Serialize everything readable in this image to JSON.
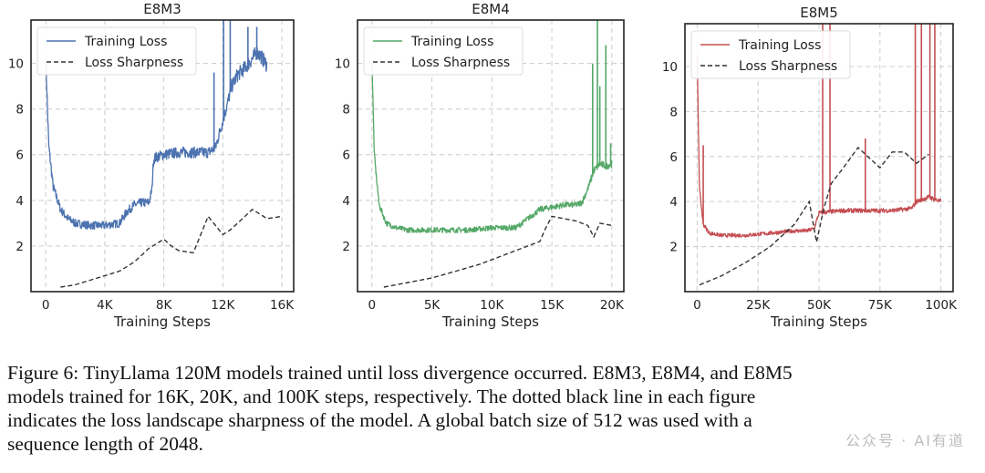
{
  "chart_data": [
    {
      "type": "line",
      "title": "E8M3",
      "xlabel": "Training Steps",
      "ylabel": "",
      "xlim": [
        -1000,
        16800
      ],
      "ylim": [
        0,
        11.9
      ],
      "xticks": [
        0,
        4000,
        8000,
        12000,
        16000
      ],
      "xtick_labels": [
        "0",
        "4K",
        "8K",
        "12K",
        "16K"
      ],
      "yticks": [
        2,
        4,
        6,
        8,
        10
      ],
      "ytick_labels": [
        "2",
        "4",
        "6",
        "8",
        "10"
      ],
      "grid": true,
      "legend_position": "top-left",
      "series": [
        {
          "name": "Training Loss",
          "color": "#4c72b0",
          "style": "solid",
          "x": [
            0,
            200,
            500,
            1000,
            1500,
            2000,
            3000,
            4000,
            5000,
            5500,
            6000,
            6500,
            7000,
            7200,
            7300,
            7500,
            8000,
            9000,
            10000,
            11000,
            11500,
            12000,
            12300,
            12600,
            13000,
            13500,
            14000,
            14300,
            14600,
            15000
          ],
          "y": [
            10.3,
            6.4,
            4.6,
            3.6,
            3.2,
            3.0,
            2.9,
            2.9,
            3.0,
            3.5,
            3.8,
            3.9,
            3.9,
            4.5,
            5.8,
            5.9,
            6.0,
            6.1,
            6.1,
            6.1,
            6.3,
            7.5,
            8.2,
            9.0,
            9.5,
            9.8,
            10.2,
            10.5,
            10.3,
            9.9
          ],
          "noise": 0.12,
          "spikes": [
            [
              11400,
              9.6
            ],
            [
              12050,
              11.9
            ],
            [
              12500,
              11.9
            ],
            [
              13700,
              11.6
            ],
            [
              14300,
              11.6
            ]
          ]
        },
        {
          "name": "Loss Sharpness",
          "color": "#333333",
          "style": "dashed",
          "x": [
            1000,
            2000,
            3000,
            4000,
            5000,
            6000,
            7000,
            8000,
            8500,
            9000,
            10000,
            11000,
            12000,
            12500,
            13000,
            14000,
            15000,
            16000
          ],
          "y": [
            0.2,
            0.3,
            0.5,
            0.7,
            0.9,
            1.3,
            1.9,
            2.3,
            2.0,
            1.8,
            1.7,
            3.3,
            2.5,
            2.7,
            3.0,
            3.6,
            3.2,
            3.3
          ]
        }
      ]
    },
    {
      "type": "line",
      "title": "E8M4",
      "xlabel": "Training Steps",
      "ylabel": "",
      "xlim": [
        -1200,
        21000
      ],
      "ylim": [
        0,
        11.9
      ],
      "xticks": [
        0,
        5000,
        10000,
        15000,
        20000
      ],
      "xtick_labels": [
        "0",
        "5K",
        "10K",
        "15K",
        "20K"
      ],
      "yticks": [
        2,
        4,
        6,
        8,
        10
      ],
      "ytick_labels": [
        "2",
        "4",
        "6",
        "8",
        "10"
      ],
      "grid": true,
      "legend_position": "top-left",
      "series": [
        {
          "name": "Training Loss",
          "color": "#55a868",
          "style": "solid",
          "x": [
            0,
            200,
            600,
            1200,
            2000,
            3000,
            5000,
            8000,
            10000,
            12000,
            13000,
            14000,
            15000,
            16000,
            17000,
            17500,
            18000,
            18500,
            19000,
            19500,
            20000
          ],
          "y": [
            10.2,
            6.0,
            3.8,
            3.0,
            2.8,
            2.7,
            2.7,
            2.7,
            2.8,
            2.8,
            3.2,
            3.6,
            3.7,
            3.8,
            3.8,
            3.9,
            4.5,
            5.3,
            5.6,
            5.5,
            5.6
          ],
          "noise": 0.08,
          "spikes": [
            [
              18400,
              10.0
            ],
            [
              18800,
              11.9
            ],
            [
              19000,
              9.0
            ],
            [
              19500,
              10.8
            ],
            [
              19900,
              6.5
            ]
          ]
        },
        {
          "name": "Loss Sharpness",
          "color": "#333333",
          "style": "dashed",
          "x": [
            1000,
            3000,
            5000,
            7000,
            9000,
            11000,
            13000,
            14000,
            14500,
            15000,
            16000,
            17000,
            18000,
            18500,
            19000,
            20000
          ],
          "y": [
            0.2,
            0.4,
            0.6,
            0.9,
            1.2,
            1.6,
            2.0,
            2.2,
            2.8,
            3.3,
            3.2,
            3.1,
            2.9,
            2.4,
            3.0,
            2.9
          ]
        }
      ]
    },
    {
      "type": "line",
      "title": "E8M5",
      "xlabel": "Training Steps",
      "ylabel": "",
      "xlim": [
        -5000,
        105000
      ],
      "ylim": [
        0,
        11.9
      ],
      "xticks": [
        0,
        25000,
        50000,
        75000,
        100000
      ],
      "xtick_labels": [
        "0",
        "25K",
        "50K",
        "75K",
        "100K"
      ],
      "yticks": [
        2,
        4,
        6,
        8,
        10
      ],
      "ytick_labels": [
        "2",
        "4",
        "6",
        "8",
        "10"
      ],
      "grid": true,
      "legend_position": "top-left",
      "series": [
        {
          "name": "Training Loss",
          "color": "#c44e52",
          "style": "solid",
          "x": [
            0,
            1000,
            2500,
            5000,
            10000,
            20000,
            30000,
            40000,
            45000,
            48000,
            50000,
            60000,
            70000,
            80000,
            88000,
            90000,
            95000,
            100000
          ],
          "y": [
            10.4,
            4.5,
            3.0,
            2.6,
            2.5,
            2.5,
            2.6,
            2.7,
            2.7,
            2.8,
            3.5,
            3.6,
            3.6,
            3.6,
            3.7,
            4.0,
            4.2,
            4.0
          ],
          "noise": 0.06,
          "spikes": [
            [
              2500,
              6.5
            ],
            [
              51500,
              11.9
            ],
            [
              54500,
              11.9
            ],
            [
              69000,
              6.8
            ],
            [
              89500,
              11.9
            ],
            [
              92000,
              11.9
            ],
            [
              95500,
              11.9
            ],
            [
              97500,
              11.9
            ]
          ]
        },
        {
          "name": "Loss Sharpness",
          "color": "#333333",
          "style": "dashed",
          "x": [
            1000,
            10000,
            20000,
            30000,
            40000,
            46000,
            49000,
            52000,
            55000,
            60000,
            66000,
            70000,
            75000,
            80000,
            85000,
            90000,
            95000
          ],
          "y": [
            0.3,
            0.7,
            1.3,
            2.0,
            3.0,
            4.0,
            2.2,
            3.7,
            4.8,
            5.5,
            6.4,
            6.0,
            5.5,
            6.2,
            6.2,
            5.7,
            6.1
          ]
        }
      ]
    }
  ],
  "caption": {
    "lines": [
      "Figure 6: TinyLlama 120M models trained until loss divergence occurred. E8M3, E8M4, and E8M5",
      "models trained for 16K, 20K, and 100K steps, respectively. The dotted black line in each figure",
      "indicates the loss landscape sharpness of the model. A global batch size of 512 was used with a",
      "sequence length of 2048."
    ]
  },
  "watermark": "公众号 · AI有道"
}
